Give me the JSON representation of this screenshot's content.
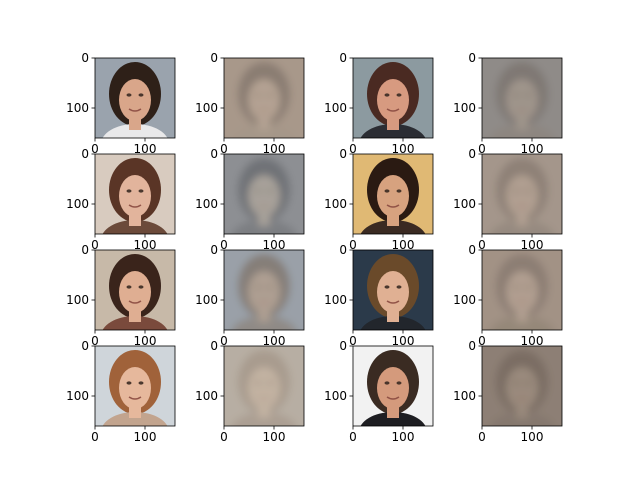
{
  "chart_data": {
    "type": "image_grid",
    "rows": 4,
    "cols": 4,
    "image_extent": [
      0,
      160
    ],
    "yticks": [
      0,
      100
    ],
    "xticks": [
      0,
      100
    ],
    "xticks_shown_on_rows": [
      1,
      2,
      3,
      4
    ],
    "panels": [
      {
        "row": 1,
        "col": 1,
        "kind": "photo",
        "palette": {
          "bg": "#9aa3ad",
          "hair": "#2e2018",
          "skin": "#d9a68a",
          "shirt": "#e9e9ea"
        }
      },
      {
        "row": 1,
        "col": 2,
        "kind": "reconstruction",
        "palette": {
          "bg": "#a8988a",
          "hair": "#8a7d72",
          "skin": "#b4a293",
          "shirt": "#a59789"
        }
      },
      {
        "row": 1,
        "col": 3,
        "kind": "photo",
        "palette": {
          "bg": "#8c9aa0",
          "hair": "#4a2a22",
          "skin": "#d79a80",
          "shirt": "#2b2d33"
        }
      },
      {
        "row": 1,
        "col": 4,
        "kind": "reconstruction",
        "palette": {
          "bg": "#8f8b88",
          "hair": "#7f7873",
          "skin": "#9f948b",
          "shirt": "#8d8680"
        }
      },
      {
        "row": 2,
        "col": 1,
        "kind": "photo",
        "palette": {
          "bg": "#d8cbbf",
          "hair": "#5a3526",
          "skin": "#e2b49c",
          "shirt": "#6b4a3a"
        }
      },
      {
        "row": 2,
        "col": 2,
        "kind": "reconstruction",
        "palette": {
          "bg": "#8d8f93",
          "hair": "#6f7277",
          "skin": "#a7a19a",
          "shirt": "#7c7e82"
        }
      },
      {
        "row": 2,
        "col": 3,
        "kind": "photo",
        "palette": {
          "bg": "#e0b974",
          "hair": "#2a1a12",
          "skin": "#d7a27f",
          "shirt": "#3a2a22"
        }
      },
      {
        "row": 2,
        "col": 4,
        "kind": "reconstruction",
        "palette": {
          "bg": "#a4968b",
          "hair": "#8e8177",
          "skin": "#b09f91",
          "shirt": "#968a80"
        }
      },
      {
        "row": 3,
        "col": 1,
        "kind": "photo",
        "palette": {
          "bg": "#c7b9a8",
          "hair": "#3a241b",
          "skin": "#dfae92",
          "shirt": "#7a4a3c"
        }
      },
      {
        "row": 3,
        "col": 2,
        "kind": "reconstruction",
        "palette": {
          "bg": "#9aa0a8",
          "hair": "#857e78",
          "skin": "#ae9f92",
          "shirt": "#8f8a86"
        }
      },
      {
        "row": 3,
        "col": 3,
        "kind": "photo",
        "palette": {
          "bg": "#2b3a4a",
          "hair": "#6a4a2a",
          "skin": "#e0b093",
          "shirt": "#22262c"
        }
      },
      {
        "row": 3,
        "col": 4,
        "kind": "reconstruction",
        "palette": {
          "bg": "#a29285",
          "hair": "#8c7e73",
          "skin": "#b09e90",
          "shirt": "#958879"
        }
      },
      {
        "row": 4,
        "col": 1,
        "kind": "photo",
        "palette": {
          "bg": "#cfd5da",
          "hair": "#a0623a",
          "skin": "#e6b89c",
          "shirt": "#c2a48e"
        }
      },
      {
        "row": 4,
        "col": 2,
        "kind": "reconstruction",
        "palette": {
          "bg": "#b7aea3",
          "hair": "#a89b8e",
          "skin": "#c2b2a2",
          "shirt": "#ab9f93"
        }
      },
      {
        "row": 4,
        "col": 3,
        "kind": "photo",
        "palette": {
          "bg": "#f2f2f2",
          "hair": "#3a2b22",
          "skin": "#d49a7c",
          "shirt": "#1e1e22"
        }
      },
      {
        "row": 4,
        "col": 4,
        "kind": "reconstruction",
        "palette": {
          "bg": "#8d7f75",
          "hair": "#7a6d63",
          "skin": "#9a8a7d",
          "shirt": "#85786e"
        }
      }
    ]
  }
}
